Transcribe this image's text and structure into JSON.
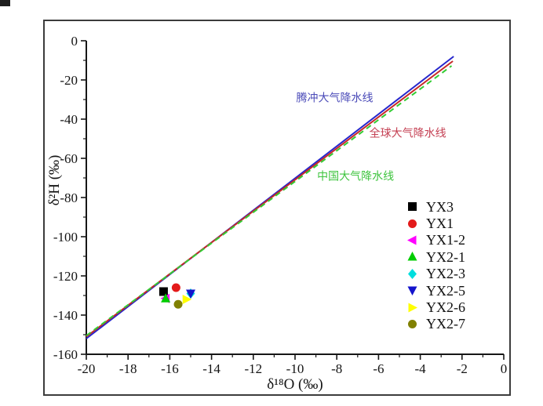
{
  "chart_data": {
    "type": "scatter",
    "title": "",
    "xlabel": "δ¹⁸O (‰)",
    "ylabel": "δ²H (‰)",
    "xlim": [
      -20,
      0
    ],
    "ylim": [
      -160,
      0
    ],
    "grid": false,
    "legend_position": "right-middle",
    "x_major_ticks": [
      -20,
      -18,
      -16,
      -14,
      -12,
      -10,
      -8,
      -6,
      -4,
      -2,
      0
    ],
    "x_minor_ticks": [
      -19,
      -17,
      -15,
      -13,
      -11,
      -9,
      -7,
      -5,
      -3,
      -1
    ],
    "y_major_ticks": [
      0,
      -20,
      -40,
      -60,
      -80,
      -100,
      -120,
      -140,
      -160
    ],
    "y_minor_ticks": [
      -10,
      -30,
      -50,
      -70,
      -90,
      -110,
      -130,
      -150
    ],
    "reference_lines": [
      {
        "name": "tengchong-mwl",
        "label": "腾冲大气降水线",
        "color": "#2626cc",
        "style": "solid",
        "points": [
          [
            -20,
            -152
          ],
          [
            -2.4,
            -8
          ]
        ],
        "label_pos": [
          -8.1,
          -29
        ],
        "label_color": "#4a4ab8"
      },
      {
        "name": "global-mwl",
        "label": "全球大气降水线",
        "color": "#c62828",
        "style": "solid",
        "points": [
          [
            -20,
            -151
          ],
          [
            -2.44,
            -10.4
          ]
        ],
        "label_pos": [
          -4.6,
          -47
        ],
        "label_color": "#c43f52"
      },
      {
        "name": "china-mwl",
        "label": "中国大气降水线",
        "color": "#33cc33",
        "style": "dashed",
        "points": [
          [
            -20,
            -150.5
          ],
          [
            -2.5,
            -12.8
          ]
        ],
        "label_pos": [
          -7.1,
          -69
        ],
        "label_color": "#3ec43e"
      }
    ],
    "series": [
      {
        "name": "YX3",
        "marker": "square",
        "color": "#000000",
        "points": [
          [
            -16.3,
            -128
          ]
        ]
      },
      {
        "name": "YX1",
        "marker": "circle",
        "color": "#e31a1a",
        "points": [
          [
            -15.7,
            -126
          ]
        ]
      },
      {
        "name": "YX1-2",
        "marker": "triangle-left",
        "color": "#ff00ff",
        "points": [
          [
            -16.2,
            -131.5
          ]
        ]
      },
      {
        "name": "YX2-1",
        "marker": "triangle-up",
        "color": "#00cc00",
        "points": [
          [
            -16.2,
            -131.5
          ]
        ]
      },
      {
        "name": "YX2-3",
        "marker": "diamond",
        "color": "#00dede",
        "points": [
          [
            -15.0,
            -129
          ]
        ]
      },
      {
        "name": "YX2-5",
        "marker": "triangle-down",
        "color": "#1414cc",
        "points": [
          [
            -15.0,
            -129
          ]
        ]
      },
      {
        "name": "YX2-6",
        "marker": "triangle-right",
        "color": "#ffff00",
        "points": [
          [
            -15.2,
            -132
          ]
        ]
      },
      {
        "name": "YX2-7",
        "marker": "circle",
        "color": "#808000",
        "points": [
          [
            -15.6,
            -134.5
          ]
        ]
      }
    ]
  }
}
